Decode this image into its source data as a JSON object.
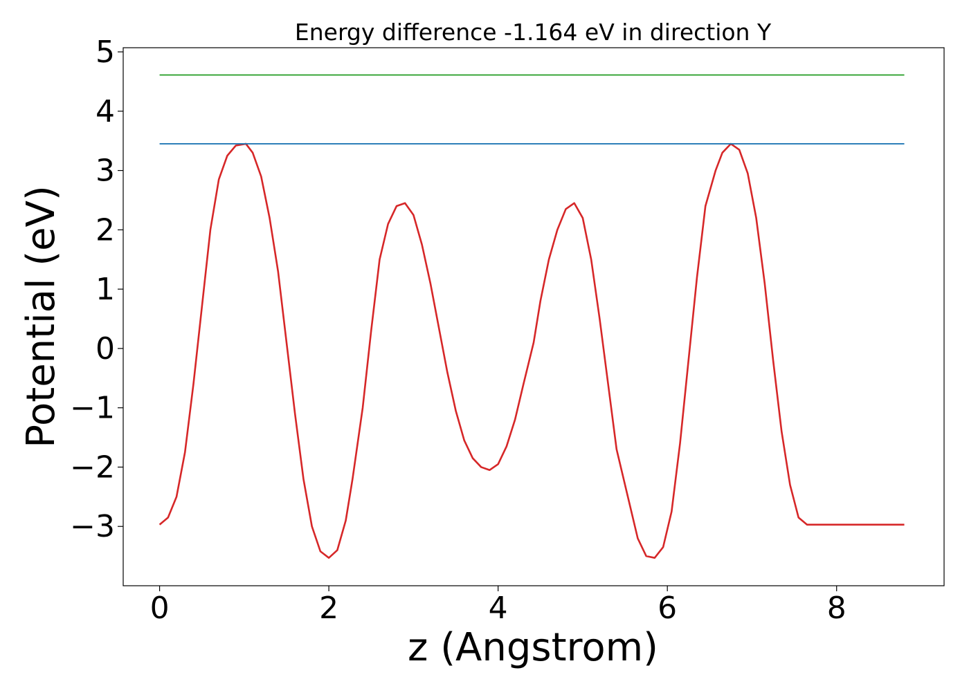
{
  "chart_data": {
    "type": "line",
    "title": "Energy difference -1.164 eV in direction Y",
    "xlabel": "z (Angstrom)",
    "ylabel": "Potential (eV)",
    "xlim": [
      -0.43,
      9.27
    ],
    "ylim": [
      -4.0,
      5.07
    ],
    "x_ticks": [
      0,
      2,
      4,
      6,
      8
    ],
    "x_tick_labels": [
      "0",
      "2",
      "4",
      "6",
      "8"
    ],
    "y_ticks": [
      -3,
      -2,
      -1,
      0,
      1,
      2,
      3,
      4,
      5
    ],
    "y_tick_labels": [
      "−3",
      "−2",
      "−1",
      "0",
      "1",
      "2",
      "3",
      "4",
      "5"
    ],
    "grid": false,
    "legend": "none",
    "series": [
      {
        "color": "#d62728",
        "x": [
          0.0,
          0.1,
          0.2,
          0.3,
          0.4,
          0.5,
          0.6,
          0.7,
          0.8,
          0.9,
          1.02,
          1.1,
          1.2,
          1.3,
          1.4,
          1.5,
          1.6,
          1.7,
          1.8,
          1.9,
          2.0,
          2.1,
          2.2,
          2.28,
          2.4,
          2.5,
          2.6,
          2.7,
          2.8,
          2.9,
          3.0,
          3.1,
          3.2,
          3.3,
          3.4,
          3.5,
          3.6,
          3.7,
          3.8,
          3.9,
          4.0,
          4.1,
          4.2,
          4.3,
          4.42,
          4.5,
          4.6,
          4.7,
          4.8,
          4.9,
          5.0,
          5.1,
          5.2,
          5.3,
          5.4,
          5.55,
          5.65,
          5.75,
          5.85,
          5.95,
          6.05,
          6.15,
          6.25,
          6.35,
          6.45,
          6.57,
          6.65,
          6.75,
          6.85,
          6.95,
          7.05,
          7.15,
          7.25,
          7.35,
          7.45,
          7.55,
          7.65,
          7.8,
          7.9,
          8.0,
          8.1,
          8.2,
          8.3,
          8.4,
          8.5,
          8.6,
          8.7,
          8.8
        ],
        "y": [
          -2.97,
          -2.85,
          -2.5,
          -1.75,
          -0.6,
          0.7,
          2.0,
          2.85,
          3.25,
          3.42,
          3.45,
          3.3,
          2.9,
          2.2,
          1.3,
          0.1,
          -1.1,
          -2.2,
          -3.0,
          -3.42,
          -3.53,
          -3.4,
          -2.9,
          -2.2,
          -1.0,
          0.3,
          1.5,
          2.1,
          2.4,
          2.45,
          2.25,
          1.75,
          1.1,
          0.35,
          -0.4,
          -1.05,
          -1.55,
          -1.85,
          -2.0,
          -2.05,
          -1.95,
          -1.65,
          -1.2,
          -0.6,
          0.1,
          0.8,
          1.5,
          2.0,
          2.35,
          2.45,
          2.2,
          1.5,
          0.5,
          -0.6,
          -1.7,
          -2.6,
          -3.2,
          -3.5,
          -3.53,
          -3.35,
          -2.75,
          -1.6,
          -0.2,
          1.2,
          2.4,
          3.0,
          3.3,
          3.45,
          3.35,
          2.95,
          2.2,
          1.1,
          -0.2,
          -1.4,
          -2.3,
          -2.85,
          -2.97,
          -2.97,
          -2.97,
          -2.97,
          -2.97,
          -2.97,
          -2.97,
          -2.97,
          -2.97,
          -2.97,
          -2.97,
          -2.97
        ]
      },
      {
        "color": "#1f77b4",
        "x": [
          0.0,
          8.8
        ],
        "y": [
          3.45,
          3.45
        ]
      },
      {
        "color": "#2ca02c",
        "x": [
          0.0,
          8.8
        ],
        "y": [
          4.61,
          4.61
        ]
      }
    ]
  }
}
